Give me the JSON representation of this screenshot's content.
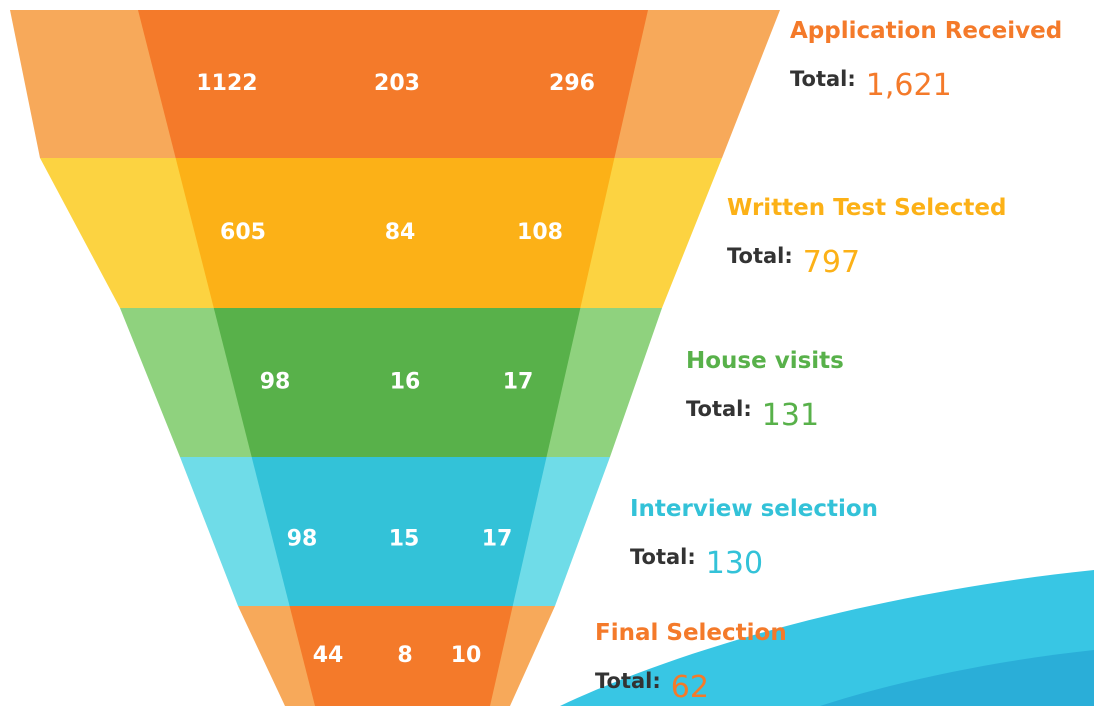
{
  "stages": [
    {
      "name": "Application Received",
      "values": [
        1122,
        203,
        296
      ],
      "total_label": "Total:",
      "total": "1,621"
    },
    {
      "name": "Written Test Selected",
      "values": [
        605,
        84,
        108
      ],
      "total_label": "Total:",
      "total": "797"
    },
    {
      "name": "House visits",
      "values": [
        98,
        16,
        17
      ],
      "total_label": "Total:",
      "total": "131"
    },
    {
      "name": "Interview selection",
      "values": [
        98,
        15,
        17
      ],
      "total_label": "Total:",
      "total": "130"
    },
    {
      "name": "Final Selection",
      "values": [
        44,
        8,
        10
      ],
      "total_label": "Total:",
      "total": "62"
    }
  ]
}
